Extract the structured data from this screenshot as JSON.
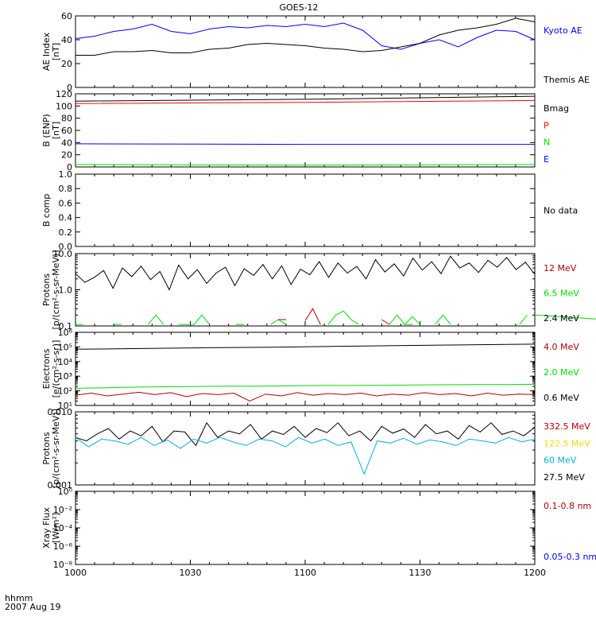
{
  "title": "GOES-12",
  "footer": {
    "unit": "hhmm",
    "date": "2007 Aug 19"
  },
  "colors": {
    "black": "#000000",
    "blue": "#0000ff",
    "red": "#ff0000",
    "darkred": "#b00000",
    "green": "#00dd00",
    "cyan": "#00b0e0",
    "yellow": "#ffd800"
  },
  "chart_data": [
    {
      "type": "line",
      "panel": "ae",
      "ylabel": "AE Index",
      "yunit": "[nT]",
      "ylim": [
        0,
        60
      ],
      "yticks": [
        "0",
        "20",
        "40",
        "60"
      ],
      "legend": [
        {
          "name": "Kyoto AE",
          "color": "#0000ff"
        },
        {
          "name": "Themis AE",
          "color": "#000000"
        }
      ],
      "x": [
        1000,
        1005,
        1010,
        1015,
        1020,
        1025,
        1030,
        1035,
        1040,
        1045,
        1050,
        1055,
        1100,
        1105,
        1110,
        1115,
        1120,
        1125,
        1130,
        1135,
        1140,
        1145,
        1150,
        1155,
        1200
      ],
      "series": [
        {
          "name": "Kyoto AE",
          "color": "#0000ff",
          "values": [
            41,
            43,
            47,
            49,
            53,
            47,
            45,
            49,
            51,
            50,
            52,
            51,
            53,
            51,
            54,
            48,
            35,
            32,
            37,
            40,
            34,
            42,
            48,
            47,
            40
          ]
        },
        {
          "name": "Themis AE",
          "color": "#000000",
          "values": [
            27,
            27,
            30,
            30,
            31,
            29,
            29,
            32,
            33,
            36,
            37,
            36,
            35,
            33,
            32,
            30,
            31,
            34,
            37,
            44,
            48,
            50,
            53,
            58,
            55
          ]
        }
      ]
    },
    {
      "type": "line",
      "panel": "bfield",
      "ylabel": "B (ENP)",
      "yunit": "[nT]",
      "ylim": [
        0,
        120
      ],
      "yticks": [
        "0",
        "20",
        "40",
        "60",
        "80",
        "100",
        "120"
      ],
      "legend": [
        {
          "name": "Bmag",
          "color": "#000000"
        },
        {
          "name": "P",
          "color": "#ff0000"
        },
        {
          "name": "N",
          "color": "#00dd00"
        },
        {
          "name": "E",
          "color": "#0000ff"
        }
      ],
      "x": [
        1000,
        1100,
        1200
      ],
      "series": [
        {
          "name": "Bmag",
          "color": "#000000",
          "values": [
            108,
            111,
            116
          ]
        },
        {
          "name": "P",
          "color": "#ff0000",
          "values": [
            104,
            106,
            109
          ]
        },
        {
          "name": "N",
          "color": "#00dd00",
          "values": [
            4,
            3,
            4
          ]
        },
        {
          "name": "E",
          "color": "#0000ff",
          "values": [
            38,
            37,
            37
          ]
        }
      ]
    },
    {
      "type": "line",
      "panel": "bcomp",
      "ylabel": "B comp",
      "ylim": [
        0,
        1
      ],
      "yticks": [
        "0.0",
        "0.2",
        "0.4",
        "0.6",
        "0.8",
        "1.0"
      ],
      "legend": [
        {
          "name": "No data",
          "color": "#000000"
        }
      ],
      "series": []
    },
    {
      "type": "line",
      "panel": "protons_low",
      "log": true,
      "ylabel": "Protons",
      "yunit": "[p/(cm²-s-sr-MeV)]",
      "ylim": [
        0.1,
        10
      ],
      "yticks": [
        "0.1",
        "1.0",
        "10.0"
      ],
      "legend": [
        {
          "name": "12 MeV",
          "color": "#b00000"
        },
        {
          "name": "6.5 MeV",
          "color": "#00dd00"
        },
        {
          "name": "2.4 MeV",
          "color": "#000000"
        }
      ],
      "series": [
        {
          "name": "2.4 MeV",
          "color": "#000000",
          "values": [
            2.8,
            1.6,
            2.2,
            3.4,
            1.1,
            4.0,
            2.3,
            4.5,
            1.9,
            3.2,
            1.0,
            4.8,
            2.0,
            3.6,
            1.5,
            2.9,
            4.2,
            1.3,
            3.8,
            2.5,
            5.0,
            2.0,
            4.6,
            1.4,
            3.7,
            2.6,
            6.0,
            2.2,
            5.5,
            2.9,
            4.4,
            2.0,
            6.8,
            3.1,
            5.2,
            2.4,
            7.5,
            3.5,
            6.0,
            2.8,
            8.5,
            4.0,
            5.5,
            3.0,
            6.5,
            4.2,
            7.8,
            3.6,
            5.8,
            2.7
          ]
        },
        {
          "name": "6.5 MeV",
          "color": "#00dd00",
          "segments": [
            [
              [
                1000,
                0.11
              ],
              [
                1002,
                0.11
              ]
            ],
            [
              [
                1010,
                0.11
              ],
              [
                1012,
                0.11
              ]
            ],
            [
              [
                1019,
                0.11
              ],
              [
                1021,
                0.2
              ],
              [
                1023,
                0.11
              ]
            ],
            [
              [
                1027,
                0.11
              ],
              [
                1031,
                0.11
              ],
              [
                1033,
                0.2
              ],
              [
                1035,
                0.11
              ]
            ],
            [
              [
                1042,
                0.11
              ],
              [
                1044,
                0.11
              ]
            ],
            [
              [
                1051,
                0.11
              ],
              [
                1053,
                0.15
              ],
              [
                1055,
                0.11
              ]
            ],
            [
              [
                1066,
                0.11
              ],
              [
                1068,
                0.2
              ],
              [
                1070,
                0.26
              ],
              [
                1072,
                0.15
              ],
              [
                1074,
                0.11
              ]
            ],
            [
              [
                1082,
                0.11
              ],
              [
                1084,
                0.2
              ],
              [
                1086,
                0.11
              ],
              [
                1088,
                0.18
              ],
              [
                1090,
                0.11
              ]
            ],
            [
              [
                1094,
                0.11
              ],
              [
                1096,
                0.2
              ],
              [
                1098,
                0.11
              ]
            ],
            [
              [
                1126,
                0.11
              ],
              [
                1128,
                0.11
              ]
            ],
            [
              [
                1156,
                0.11
              ],
              [
                1158,
                0.2
              ]
            ],
            [
              [
                1198,
                0.11
              ],
              [
                1200,
                0.2
              ]
            ]
          ]
        },
        {
          "name": "12 MeV",
          "color": "#b00000",
          "segments": [
            [
              [
                1053,
                0.15
              ],
              [
                1055,
                0.15
              ]
            ],
            [
              [
                1060,
                0.14
              ],
              [
                1062,
                0.3
              ],
              [
                1064,
                0.11
              ]
            ],
            [
              [
                1080,
                0.15
              ],
              [
                1082,
                0.11
              ]
            ]
          ]
        }
      ]
    },
    {
      "type": "line",
      "panel": "electrons",
      "log": true,
      "ylabel": "Electrons",
      "yunit": "[e/(cm²-s-sr)]",
      "ylim": [
        10,
        1000000
      ],
      "yticks": [
        "10¹",
        "10²",
        "10³",
        "10⁴",
        "10⁵",
        "10⁶"
      ],
      "legend": [
        {
          "name": "4.0 MeV",
          "color": "#b00000"
        },
        {
          "name": "2.0 MeV",
          "color": "#00dd00"
        },
        {
          "name": "0.6 MeV",
          "color": "#000000"
        }
      ],
      "series": [
        {
          "name": "0.6 MeV",
          "color": "#000000",
          "values": [
            70000,
            78000,
            88000,
            95000,
            110000,
            125000,
            140000,
            155000
          ]
        },
        {
          "name": "2.0 MeV",
          "color": "#00dd00",
          "values": [
            150,
            160,
            180,
            190,
            200,
            210,
            210,
            220,
            230,
            230,
            240,
            250,
            260,
            270,
            270,
            280
          ]
        },
        {
          "name": "4.0 MeV",
          "color": "#b00000",
          "values": [
            50,
            70,
            45,
            60,
            80,
            55,
            75,
            40,
            65,
            55,
            70,
            20,
            60,
            45,
            75,
            50,
            65,
            55,
            70,
            45,
            60,
            50,
            75,
            55,
            65,
            45,
            70,
            50,
            60,
            55
          ]
        }
      ]
    },
    {
      "type": "line",
      "panel": "protons_high",
      "log": true,
      "ylabel": "Protons",
      "yunit": "[p/(cm²-s-sr-MeV)]",
      "ylim": [
        0.001,
        0.1
      ],
      "yticks": [
        "0.001",
        "0.010"
      ],
      "legend": [
        {
          "name": "332.5 MeV",
          "color": "#b00000"
        },
        {
          "name": "122.5 MeV",
          "color": "#ffd800"
        },
        {
          "name": "60 MeV",
          "color": "#00b0e0"
        },
        {
          "name": "27.5 MeV",
          "color": "#000000"
        }
      ],
      "series": [
        {
          "name": "27.5 MeV",
          "color": "#000000",
          "values": [
            0.02,
            0.016,
            0.025,
            0.035,
            0.018,
            0.03,
            0.022,
            0.04,
            0.015,
            0.03,
            0.028,
            0.012,
            0.05,
            0.02,
            0.03,
            0.025,
            0.045,
            0.018,
            0.03,
            0.024,
            0.04,
            0.02,
            0.035,
            0.027,
            0.05,
            0.022,
            0.03,
            0.016,
            0.04,
            0.026,
            0.034,
            0.02,
            0.045,
            0.025,
            0.03,
            0.018,
            0.042,
            0.028,
            0.05,
            0.024,
            0.03,
            0.022,
            0.038
          ]
        },
        {
          "name": "60 MeV",
          "color": "#00b0e0",
          "values": [
            0.02,
            0.011,
            0.018,
            0.016,
            0.013,
            0.02,
            0.012,
            0.017,
            0.01,
            0.018,
            0.014,
            0.02,
            0.015,
            0.012,
            0.018,
            0.016,
            0.011,
            0.02,
            0.014,
            0.018,
            0.012,
            0.015,
            0.002,
            0.016,
            0.014,
            0.019,
            0.013,
            0.017,
            0.015,
            0.012,
            0.018,
            0.016,
            0.014,
            0.02,
            0.015,
            0.018
          ]
        }
      ]
    },
    {
      "type": "line",
      "panel": "xray",
      "log": true,
      "ylabel": "Xray Flux",
      "yunit": "[W/m²]",
      "ylim": [
        1e-08,
        1
      ],
      "yticks": [
        "10⁻⁸",
        "10⁻⁶",
        "10⁻⁴",
        "10⁻²",
        "10⁰"
      ],
      "legend": [
        {
          "name": "0.1-0.8 nm",
          "color": "#b00000"
        },
        {
          "name": "0.05-0.3 nm",
          "color": "#0000ff"
        }
      ],
      "series": []
    }
  ],
  "xaxis": {
    "ticks": [
      "1000",
      "1030",
      "1100",
      "1130",
      "1200"
    ]
  }
}
